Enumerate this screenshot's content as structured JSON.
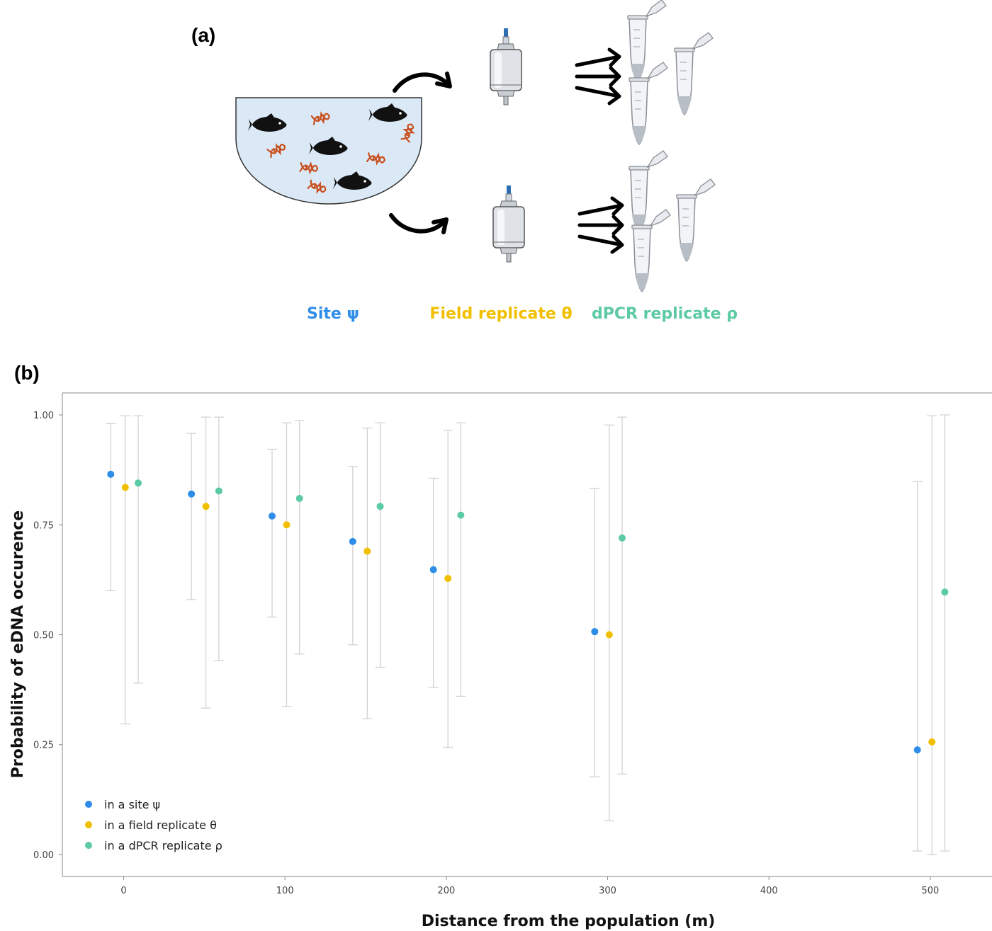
{
  "panel_a": {
    "label": "(a)",
    "site_label": "Site ψ",
    "field_label": "Field replicate θ",
    "dpcr_label": "dPCR replicate ρ"
  },
  "panel_b": {
    "label": "(b)"
  },
  "colors": {
    "site": "#2e8de8",
    "field": "#f0c000",
    "dpcr": "#5ccaa2",
    "dna": "#c8501e",
    "water": "#dbe9f7",
    "errorbar": "#cfcfcf"
  },
  "icons": [
    "fish-icon",
    "dna-icon",
    "arrow-icon",
    "filter-capsule-icon",
    "microtube-icon"
  ],
  "chart_data": {
    "type": "scatter",
    "title": "",
    "xlabel": "Distance from the population (m)",
    "ylabel": "Probability of eDNA occurence",
    "xlim": [
      -38,
      540
    ],
    "ylim": [
      -0.05,
      1.05
    ],
    "x_ticks": [
      0,
      100,
      200,
      300,
      400,
      500
    ],
    "x_tick_labels": [
      "0",
      "100",
      "200",
      "300",
      "400",
      "500"
    ],
    "y_ticks": [
      0,
      0.25,
      0.5,
      0.75,
      1.0
    ],
    "y_tick_labels": [
      "0.00",
      "0.25",
      "0.50",
      "0.75",
      "1.00"
    ],
    "grid": false,
    "legend_position": "bottom-left",
    "distances": [
      0,
      50,
      100,
      150,
      200,
      300,
      500
    ],
    "series": [
      {
        "name": "in a site ψ",
        "key": "site",
        "x": [
          -8,
          42,
          92,
          142,
          192,
          292,
          492
        ],
        "y": [
          0.865,
          0.82,
          0.77,
          0.712,
          0.648,
          0.507,
          0.238
        ],
        "lower": [
          0.6,
          0.58,
          0.54,
          0.477,
          0.38,
          0.177,
          0.008
        ],
        "upper": [
          0.98,
          0.958,
          0.922,
          0.883,
          0.856,
          0.833,
          0.848
        ]
      },
      {
        "name": "in a field replicate θ",
        "key": "field",
        "x": [
          1,
          51,
          101,
          151,
          201,
          301,
          501
        ],
        "y": [
          0.835,
          0.792,
          0.75,
          0.69,
          0.628,
          0.5,
          0.256
        ],
        "lower": [
          0.297,
          0.333,
          0.337,
          0.309,
          0.244,
          0.077,
          0.0
        ],
        "upper": [
          0.998,
          0.995,
          0.982,
          0.97,
          0.965,
          0.977,
          0.998
        ]
      },
      {
        "name": "in a dPCR replicate ρ",
        "key": "dpcr",
        "x": [
          9,
          59,
          109,
          159,
          209,
          309,
          509
        ],
        "y": [
          0.845,
          0.827,
          0.81,
          0.792,
          0.772,
          0.72,
          0.597
        ],
        "lower": [
          0.39,
          0.441,
          0.456,
          0.426,
          0.36,
          0.183,
          0.008
        ],
        "upper": [
          0.998,
          0.995,
          0.987,
          0.982,
          0.982,
          0.995,
          1.0
        ]
      }
    ]
  }
}
